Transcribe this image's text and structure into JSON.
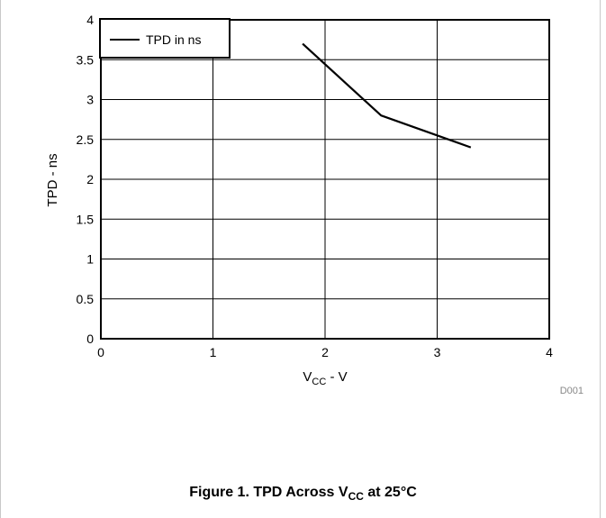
{
  "chart_data": {
    "type": "line",
    "ylabel": "TPD - ns",
    "xlabel_main": "V",
    "xlabel_sub": "CC",
    "xlabel_rest": " - V",
    "xlim": [
      0,
      4
    ],
    "ylim": [
      0,
      4
    ],
    "x_ticks": [
      "0",
      "1",
      "2",
      "3",
      "4"
    ],
    "y_ticks": [
      "0",
      "0.5",
      "1",
      "1.5",
      "2",
      "2.5",
      "3",
      "3.5",
      "4"
    ],
    "grid": true,
    "legend_position": "top-left",
    "series": [
      {
        "name": "TPD in ns",
        "color": "#000000",
        "x": [
          1.8,
          2.5,
          3.3
        ],
        "y": [
          3.7,
          2.8,
          2.4
        ]
      }
    ],
    "code": "D001"
  },
  "caption": {
    "prefix": "Figure 1. TPD Across V",
    "sub": "CC",
    "suffix": " at 25°C"
  }
}
